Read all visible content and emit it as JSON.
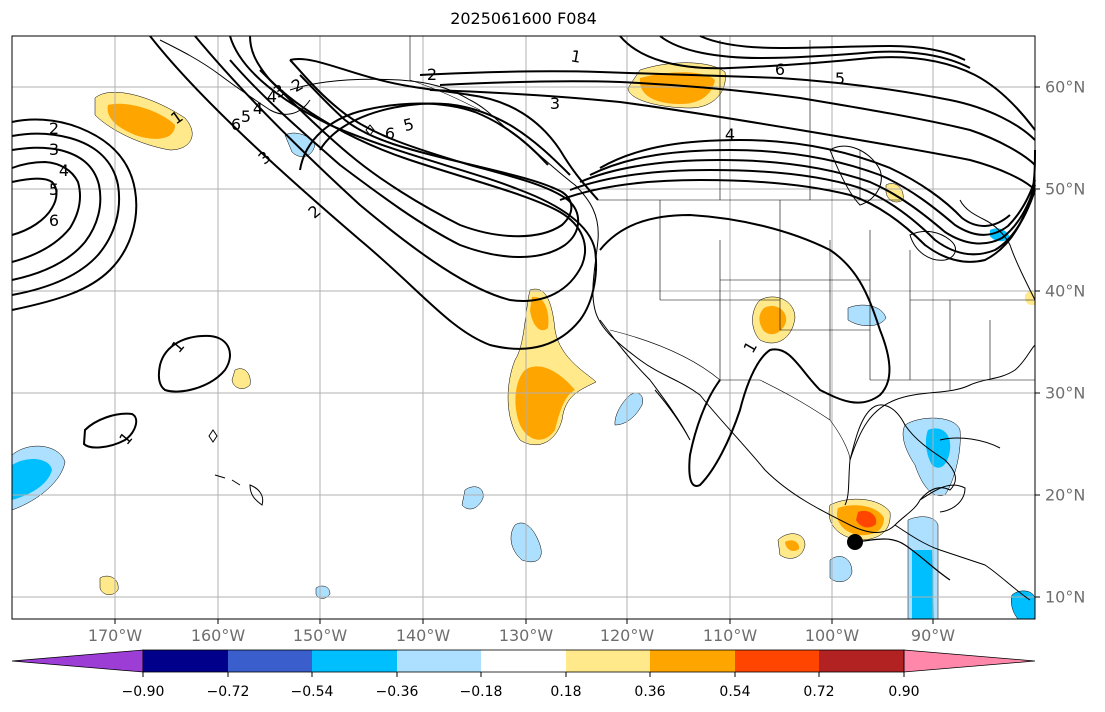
{
  "title": "2025061600 F084",
  "map": {
    "lon_labels": [
      "170°W",
      "160°W",
      "150°W",
      "140°W",
      "130°W",
      "120°W",
      "110°W",
      "100°W",
      "90°W"
    ],
    "lat_labels": [
      "60°N",
      "50°N",
      "40°N",
      "30°N",
      "20°N",
      "10°N"
    ],
    "contour_labels": [
      {
        "text": "1"
      },
      {
        "text": "2"
      },
      {
        "text": "3"
      },
      {
        "text": "4"
      },
      {
        "text": "5"
      },
      {
        "text": "6"
      },
      {
        "text": "2"
      },
      {
        "text": "3"
      },
      {
        "text": "4"
      },
      {
        "text": "5"
      },
      {
        "text": "6"
      },
      {
        "text": "2"
      },
      {
        "text": "3"
      },
      {
        "text": "4"
      },
      {
        "text": "5"
      },
      {
        "text": "6"
      },
      {
        "text": "1"
      },
      {
        "text": "1"
      },
      {
        "text": "1"
      },
      {
        "text": "2"
      },
      {
        "text": "3"
      },
      {
        "text": "4"
      },
      {
        "text": "5"
      },
      {
        "text": "6"
      },
      {
        "text": "1"
      }
    ],
    "colors": {
      "contour": "#000000",
      "grid": "#b0b0b0",
      "coast": "#000000",
      "marker": "#000000"
    }
  },
  "colorbar": {
    "ticks": [
      "−0.90",
      "−0.72",
      "−0.54",
      "−0.36",
      "−0.18",
      "0.18",
      "0.36",
      "0.54",
      "0.72",
      "0.90"
    ],
    "colors": [
      "#9c3dd6",
      "#00008b",
      "#3a5fcd",
      "#00bfff",
      "#ade0ff",
      "#ffffff",
      "#ffe98a",
      "#ffa500",
      "#ff4500",
      "#b22222",
      "#ff88aa"
    ]
  }
}
